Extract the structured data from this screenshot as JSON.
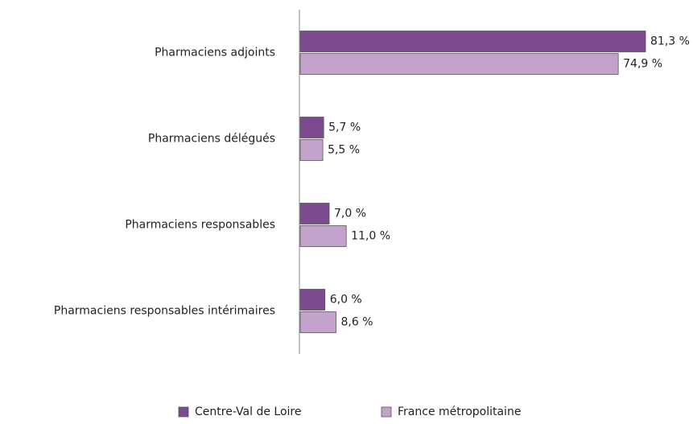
{
  "chart_data": {
    "type": "hbar",
    "categories": [
      "Pharmaciens adjoints",
      "Pharmaciens délégués",
      "Pharmaciens responsables",
      "Pharmaciens responsables intérimaires"
    ],
    "series": [
      {
        "name": "Centre-Val de Loire",
        "color": "#7b4a8f",
        "values": [
          81.3,
          5.7,
          7.0,
          6.0
        ],
        "value_labels": [
          "81,3 %",
          "5,7 %",
          "7,0 %",
          "6,0 %"
        ]
      },
      {
        "name": "France métropolitaine",
        "color": "#c3a3cc",
        "values": [
          74.9,
          5.5,
          11.0,
          8.6
        ],
        "value_labels": [
          "74,9 %",
          "5,5 %",
          "11,0 %",
          "8,6 %"
        ]
      }
    ],
    "legend": "bottom"
  }
}
